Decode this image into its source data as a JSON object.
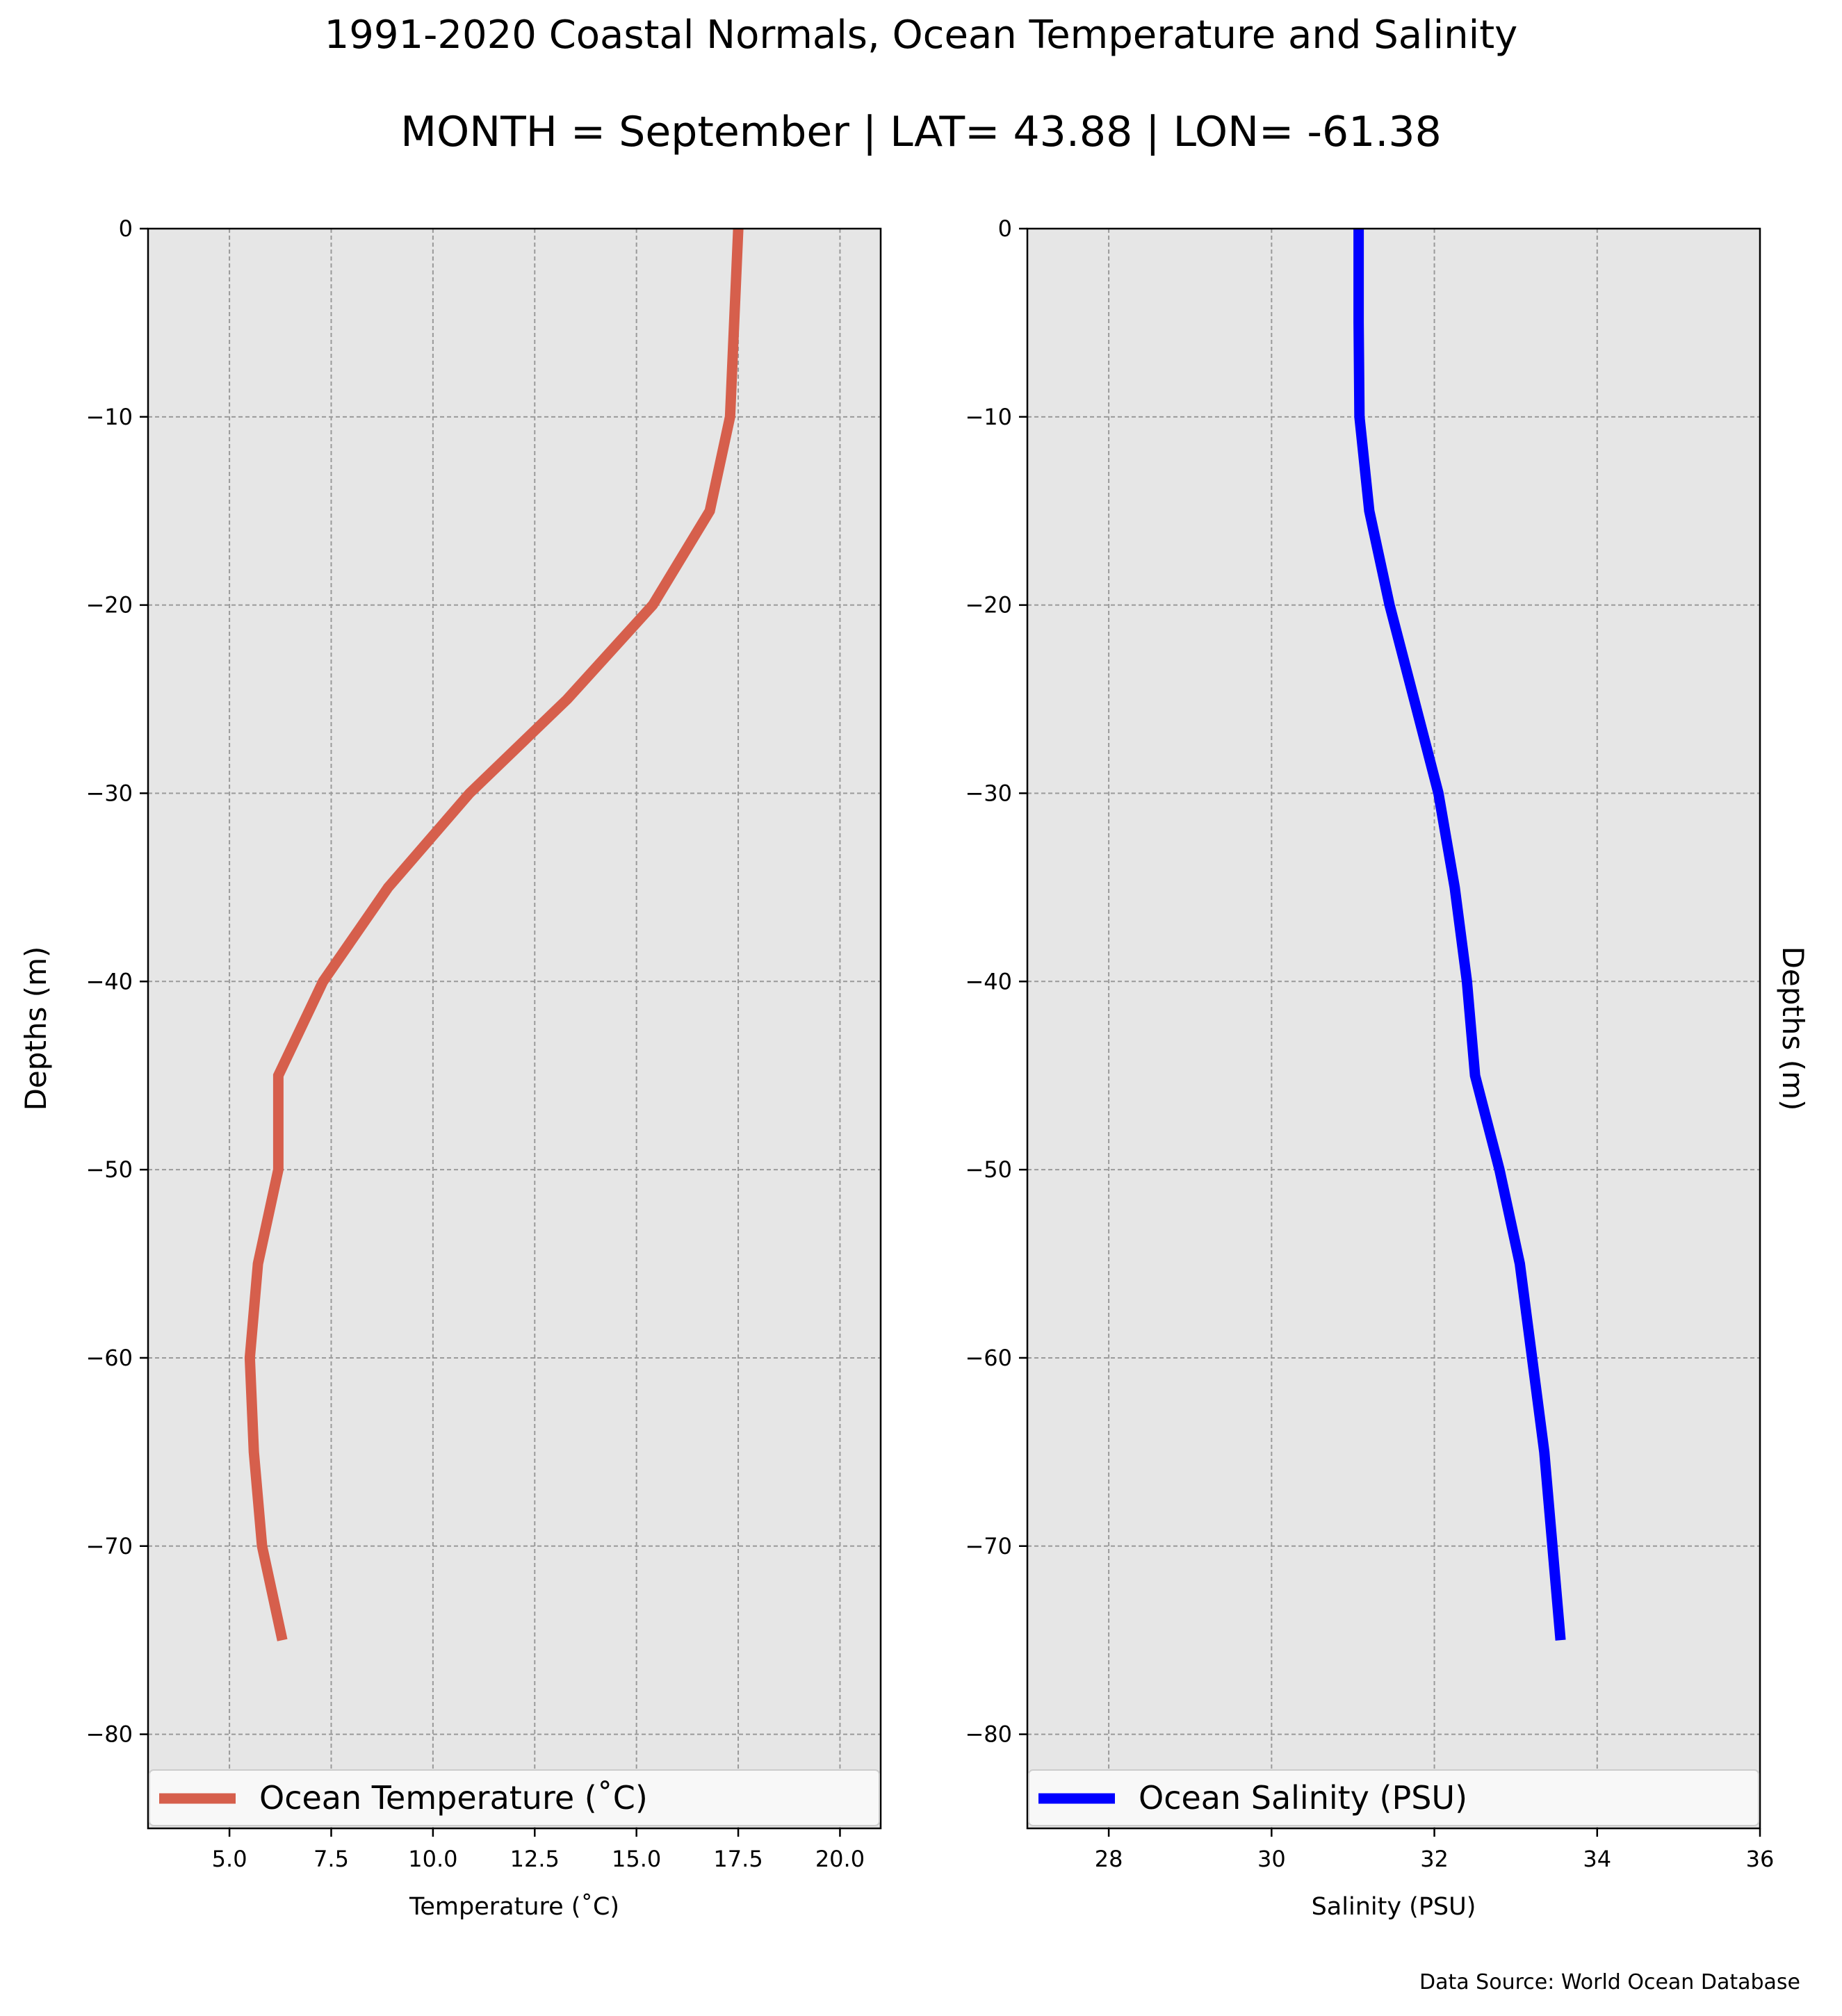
{
  "figure": {
    "title": "1991-2020 Coastal Normals, Ocean Temperature and Salinity",
    "subtitle": "MONTH = September | LAT= 43.88 | LON= -61.38",
    "source": "Data Source: World Ocean Database"
  },
  "chart_data": [
    {
      "type": "line",
      "orientation": "vertical-profile",
      "xlabel": "Temperature ($^\\circ$C)",
      "xlabel_display": "Temperature (˚C)",
      "ylabel": "Depths (m)",
      "xlim": [
        3.0,
        21.0
      ],
      "ylim": [
        -85,
        0
      ],
      "xticks": [
        5.0,
        7.5,
        10.0,
        12.5,
        15.0,
        17.5,
        20.0
      ],
      "xtick_labels": [
        "5.0",
        "7.5",
        "10.0",
        "12.5",
        "15.0",
        "17.5",
        "20.0"
      ],
      "yticks": [
        0,
        -10,
        -20,
        -30,
        -40,
        -50,
        -60,
        -70,
        -80
      ],
      "ytick_labels": [
        "0",
        "−10",
        "−20",
        "−30",
        "−40",
        "−50",
        "−60",
        "−70",
        "−80"
      ],
      "grid": true,
      "legend": "bottom",
      "series": [
        {
          "name": "Ocean Temperature (˚C)",
          "color": "#d65f4c",
          "x": [
            17.5,
            17.4,
            17.3,
            16.8,
            15.4,
            13.3,
            10.9,
            8.9,
            7.3,
            6.2,
            6.2,
            5.7,
            5.5,
            5.6,
            5.8,
            6.3
          ],
          "y": [
            0,
            -5,
            -10,
            -15,
            -20,
            -25,
            -30,
            -35,
            -40,
            -45,
            -50,
            -55,
            -60,
            -65,
            -70,
            -75
          ]
        }
      ]
    },
    {
      "type": "line",
      "orientation": "vertical-profile",
      "xlabel": "Salinity (PSU)",
      "ylabel": "Depths (m)",
      "xlim": [
        27,
        36
      ],
      "ylim": [
        -85,
        0
      ],
      "xticks": [
        28,
        30,
        32,
        34,
        36
      ],
      "xtick_labels": [
        "28",
        "30",
        "32",
        "34",
        "36"
      ],
      "yticks": [
        0,
        -10,
        -20,
        -30,
        -40,
        -50,
        -60,
        -70,
        -80
      ],
      "ytick_labels": [
        "0",
        "−10",
        "−20",
        "−30",
        "−40",
        "−50",
        "−60",
        "−70",
        "−80"
      ],
      "grid": true,
      "legend": "bottom",
      "series": [
        {
          "name": "Ocean Salinity (PSU)",
          "color": "#0000ff",
          "x": [
            31.07,
            31.07,
            31.08,
            31.2,
            31.45,
            31.75,
            32.05,
            32.25,
            32.4,
            32.5,
            32.8,
            33.05,
            33.2,
            33.35,
            33.45,
            33.55
          ],
          "y": [
            0,
            -5,
            -10,
            -15,
            -20,
            -25,
            -30,
            -35,
            -40,
            -45,
            -50,
            -55,
            -60,
            -65,
            -70,
            -75
          ]
        }
      ]
    }
  ]
}
